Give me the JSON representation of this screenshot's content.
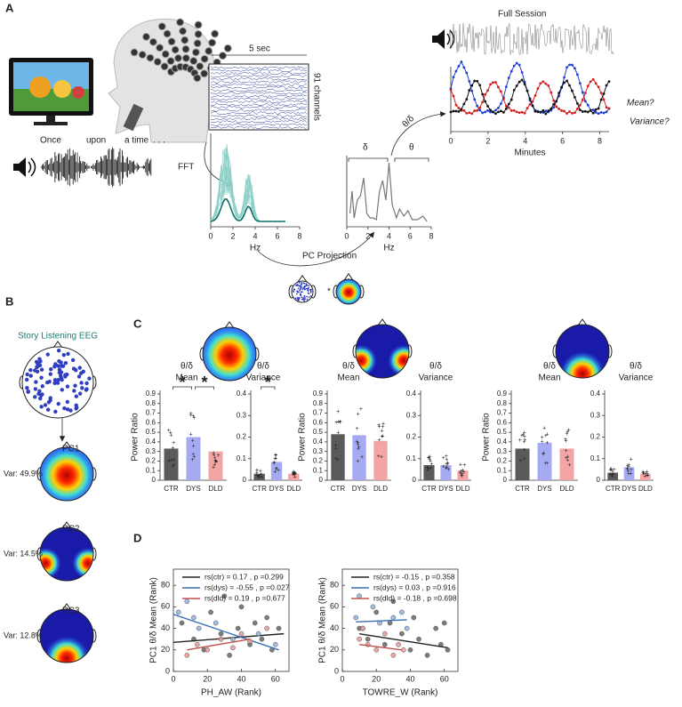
{
  "figure_labels": [
    "A",
    "B",
    "C",
    "D"
  ],
  "panel_a": {
    "speech_words": [
      "Once",
      "upon",
      "a time",
      ". . ."
    ],
    "window_label": "5 sec",
    "channels_label": "91 channels",
    "fft_label": "FFT",
    "projection_label": "PC Projection",
    "projection_operator": "*",
    "delta_label": "δ",
    "theta_label": "θ",
    "ratio_label": "θ/δ",
    "session_title": "Full Session",
    "mean_question": "Mean?",
    "variance_question": "Variance?"
  },
  "panel_b": {
    "title": "Story Listening EEG",
    "components": [
      {
        "name": "PC1",
        "variance": "Var: 49.9%"
      },
      {
        "name": "PC2",
        "variance": "Var: 14.5%"
      },
      {
        "name": "PC3",
        "variance": "Var: 12.8%"
      }
    ]
  },
  "panel_c": {
    "groups": [
      {
        "mean_label": [
          "θ/δ",
          "Mean"
        ],
        "variance_label": [
          "θ/δ",
          "Variance"
        ]
      },
      {
        "mean_label": [
          "θ/δ",
          "Mean"
        ],
        "variance_label": [
          "θ/δ",
          "Variance"
        ]
      },
      {
        "mean_label": [
          "θ/δ",
          "Mean"
        ],
        "variance_label": [
          "θ/δ",
          "Variance"
        ]
      }
    ]
  },
  "chart_data": [
    {
      "type": "line",
      "xlabel": "Hz",
      "xlim": [
        0,
        8
      ],
      "xticks": [
        0,
        2,
        4,
        6,
        8
      ]
    },
    {
      "type": "line",
      "xlabel": "Hz",
      "xlim": [
        0,
        8
      ],
      "xticks": [
        0,
        2,
        4,
        6,
        8
      ]
    },
    {
      "type": "line",
      "xlabel": "Minutes",
      "xlim": [
        0,
        8.5
      ],
      "xticks": [
        0,
        2,
        4,
        6,
        8
      ]
    },
    {
      "type": "bar",
      "ylabel": "Power Ratio",
      "categories": [
        "CTR",
        "DYS",
        "DLD"
      ],
      "values": [
        0.33,
        0.45,
        0.3
      ],
      "colors": [
        "#5a5a5a",
        "#a6aaf3",
        "#f3a5a5"
      ],
      "ylim": [
        0,
        0.9
      ],
      "yticks": [
        0,
        0.1,
        0.2,
        0.3,
        0.4,
        0.5,
        0.6,
        0.7,
        0.8,
        0.9
      ],
      "significance": [
        "*",
        "*"
      ]
    },
    {
      "type": "bar",
      "categories": [
        "CTR",
        "DYS",
        "DLD"
      ],
      "values": [
        0.03,
        0.085,
        0.03
      ],
      "colors": [
        "#5a5a5a",
        "#a6aaf3",
        "#f3a5a5"
      ],
      "ylim": [
        0,
        0.4
      ],
      "yticks": [
        0,
        0.1,
        0.2,
        0.3,
        0.4
      ],
      "significance": [
        "*"
      ]
    },
    {
      "type": "bar",
      "ylabel": "Power Ratio",
      "categories": [
        "CTR",
        "DYS",
        "DLD"
      ],
      "values": [
        0.48,
        0.47,
        0.41
      ],
      "colors": [
        "#5a5a5a",
        "#a6aaf3",
        "#f3a5a5"
      ],
      "ylim": [
        0,
        0.9
      ],
      "yticks": [
        0,
        0.1,
        0.2,
        0.3,
        0.4,
        0.5,
        0.6,
        0.7,
        0.8,
        0.9
      ]
    },
    {
      "type": "bar",
      "categories": [
        "CTR",
        "DYS",
        "DLD"
      ],
      "values": [
        0.07,
        0.07,
        0.045
      ],
      "colors": [
        "#5a5a5a",
        "#a6aaf3",
        "#f3a5a5"
      ],
      "ylim": [
        0,
        0.4
      ],
      "yticks": [
        0,
        0.1,
        0.2,
        0.3,
        0.4
      ]
    },
    {
      "type": "bar",
      "ylabel": "Power Ratio",
      "categories": [
        "CTR",
        "DYS",
        "DLD"
      ],
      "values": [
        0.33,
        0.39,
        0.33
      ],
      "colors": [
        "#5a5a5a",
        "#a6aaf3",
        "#f3a5a5"
      ],
      "ylim": [
        0,
        0.9
      ],
      "yticks": [
        0,
        0.1,
        0.2,
        0.3,
        0.4,
        0.5,
        0.6,
        0.7,
        0.8,
        0.9
      ]
    },
    {
      "type": "bar",
      "categories": [
        "CTR",
        "DYS",
        "DLD"
      ],
      "values": [
        0.035,
        0.06,
        0.03
      ],
      "colors": [
        "#5a5a5a",
        "#a6aaf3",
        "#f3a5a5"
      ],
      "ylim": [
        0,
        0.4
      ],
      "yticks": [
        0,
        0.1,
        0.2,
        0.3,
        0.4
      ]
    },
    {
      "type": "scatter",
      "xlabel": "PH_AW (Rank)",
      "ylabel": "PC1 θ/δ Mean (Rank)",
      "xlim": [
        0,
        68
      ],
      "ylim": [
        0,
        95
      ],
      "xticks": [
        0,
        20,
        40,
        60
      ],
      "yticks": [
        0,
        20,
        40,
        60,
        80
      ],
      "series": [
        {
          "name": "rs(ctr) = 0.17 , p =0.299",
          "color": "#222222",
          "point_color": "#666666",
          "x": [
            5,
            12,
            18,
            22,
            28,
            33,
            38,
            40,
            45,
            48,
            52,
            55,
            58,
            62,
            30
          ],
          "values": [
            45,
            30,
            20,
            55,
            35,
            15,
            40,
            60,
            25,
            45,
            30,
            50,
            20,
            40,
            70
          ],
          "fit_x": [
            0,
            65
          ],
          "fit_y": [
            27,
            35
          ]
        },
        {
          "name": "rs(dys) = -0.55 , p =0.027",
          "color": "#3b6fb6",
          "point_color": "#8fb0dc",
          "x": [
            3,
            8,
            12,
            15,
            25,
            35,
            50,
            60
          ],
          "values": [
            55,
            65,
            50,
            40,
            45,
            30,
            35,
            25
          ],
          "fit_x": [
            0,
            62
          ],
          "fit_y": [
            53,
            20
          ]
        },
        {
          "name": "rs(dld) = 0.19 , p =0.677",
          "color": "#c0504d",
          "point_color": "#e39a98",
          "x": [
            8,
            14,
            20,
            28,
            35,
            40,
            45,
            55
          ],
          "values": [
            15,
            25,
            20,
            30,
            22,
            35,
            28,
            40
          ],
          "fit_x": [
            8,
            45
          ],
          "fit_y": [
            20,
            30
          ]
        }
      ]
    },
    {
      "type": "scatter",
      "xlabel": "TOWRE_W (Rank)",
      "ylabel": "PC1 θ/δ Mean (Rank)",
      "xlim": [
        0,
        68
      ],
      "ylim": [
        0,
        95
      ],
      "xticks": [
        0,
        20,
        40,
        60
      ],
      "yticks": [
        0,
        20,
        40,
        60,
        80
      ],
      "series": [
        {
          "name": "rs(ctr) = -0.15 , p =0.358",
          "color": "#222222",
          "point_color": "#666666",
          "x": [
            10,
            15,
            20,
            25,
            28,
            35,
            40,
            42,
            45,
            50,
            55,
            58,
            60,
            62,
            30
          ],
          "values": [
            40,
            30,
            55,
            25,
            45,
            35,
            20,
            50,
            30,
            15,
            40,
            25,
            45,
            20,
            65
          ],
          "fit_x": [
            10,
            62
          ],
          "fit_y": [
            35,
            22
          ]
        },
        {
          "name": "rs(dys) = 0.03 , p =0.916",
          "color": "#3b6fb6",
          "point_color": "#8fb0dc",
          "x": [
            8,
            10,
            12,
            18,
            22,
            30,
            35,
            38
          ],
          "values": [
            50,
            70,
            40,
            60,
            45,
            50,
            55,
            40
          ],
          "fit_x": [
            8,
            38
          ],
          "fit_y": [
            46,
            48
          ]
        },
        {
          "name": "rs(dld) = -0.18 , p =0.698",
          "color": "#c0504d",
          "point_color": "#e39a98",
          "x": [
            10,
            15,
            20,
            25,
            30,
            33,
            36,
            12
          ],
          "values": [
            30,
            25,
            20,
            35,
            15,
            25,
            20,
            40
          ],
          "fit_x": [
            10,
            35
          ],
          "fit_y": [
            25,
            20
          ]
        }
      ]
    }
  ]
}
